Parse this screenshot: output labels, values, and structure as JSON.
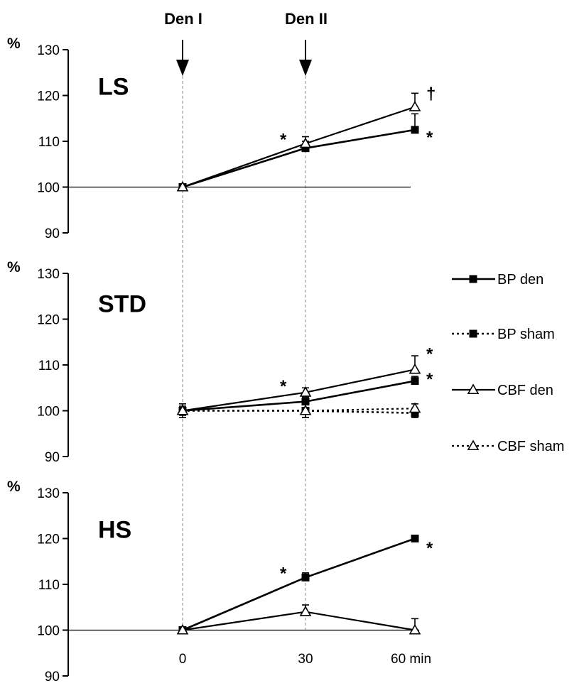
{
  "chart_data": {
    "type": "line",
    "x": [
      0,
      30,
      60
    ],
    "x_tick_labels": [
      "0",
      "30",
      "60 min"
    ],
    "ylim": [
      90,
      130
    ],
    "y_ticks": [
      90,
      100,
      110,
      120,
      130
    ],
    "y_unit": "%",
    "events": [
      {
        "label": "Den I",
        "x": 0
      },
      {
        "label": "Den II",
        "x": 30
      }
    ],
    "legend": [
      {
        "label": "BP den",
        "line": "solid",
        "marker": "filled-square"
      },
      {
        "label": "BP sham",
        "line": "dotted",
        "marker": "filled-square"
      },
      {
        "label": "CBF den",
        "line": "solid",
        "marker": "open-triangle"
      },
      {
        "label": "CBF sham",
        "line": "dotted",
        "marker": "open-triangle"
      }
    ],
    "panels": [
      {
        "title": "LS",
        "series": [
          {
            "name": "BP den",
            "values": [
              100,
              108.5,
              112.5
            ],
            "err": [
              0,
              1.5,
              3.5
            ]
          },
          {
            "name": "CBF den",
            "values": [
              100,
              109.5,
              117.5
            ],
            "err": [
              0,
              1.5,
              3
            ]
          }
        ],
        "annotations": [
          {
            "text": "*",
            "x": 30,
            "y": 111,
            "side": "left"
          },
          {
            "text": "†",
            "x": 60,
            "y": 121,
            "side": "right"
          },
          {
            "text": "*",
            "x": 60,
            "y": 111.5,
            "side": "right"
          }
        ]
      },
      {
        "title": "STD",
        "series": [
          {
            "name": "BP den",
            "values": [
              100,
              102,
              106.5
            ],
            "err": [
              0,
              1,
              1
            ]
          },
          {
            "name": "BP sham",
            "values": [
              100,
              100,
              99.5
            ],
            "err": [
              0,
              1.5,
              1
            ]
          },
          {
            "name": "CBF den",
            "values": [
              100,
              104,
              109
            ],
            "err": [
              1.5,
              1,
              3
            ]
          },
          {
            "name": "CBF sham",
            "values": [
              100,
              100,
              100.5
            ],
            "err": [
              1,
              1.5,
              1
            ]
          }
        ],
        "annotations": [
          {
            "text": "*",
            "x": 30,
            "y": 106,
            "side": "left"
          },
          {
            "text": "*",
            "x": 60,
            "y": 113,
            "side": "right"
          },
          {
            "text": "*",
            "x": 60,
            "y": 107.5,
            "side": "right"
          }
        ]
      },
      {
        "title": "HS",
        "series": [
          {
            "name": "BP den",
            "values": [
              100,
              111.5,
              120
            ],
            "err": [
              0,
              1,
              0.5
            ]
          },
          {
            "name": "CBF den",
            "values": [
              100,
              104,
              100
            ],
            "err": [
              0,
              1.5,
              2.5
            ]
          }
        ],
        "annotations": [
          {
            "text": "*",
            "x": 30,
            "y": 113,
            "side": "left"
          },
          {
            "text": "*",
            "x": 60,
            "y": 118.5,
            "side": "right"
          }
        ]
      }
    ]
  }
}
